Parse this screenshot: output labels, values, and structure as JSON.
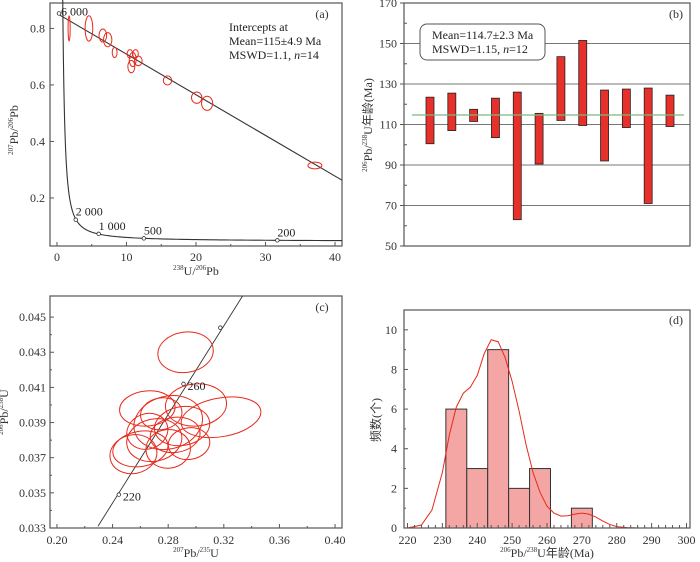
{
  "chart_data": [
    {
      "id": "a",
      "type": "scatter",
      "panel_label": "(a)",
      "title": "",
      "xlabel": {
        "sup1": "238",
        "base1": "U/",
        "sup2": "206",
        "base2": "Pb"
      },
      "ylabel": {
        "sup1": "207",
        "base1": "Pb/",
        "sup2": "206",
        "base2": "Pb"
      },
      "xlim": [
        -1,
        41
      ],
      "ylim": [
        0.03,
        0.89
      ],
      "xticks": [
        0,
        10,
        20,
        30,
        40
      ],
      "yticks": [
        0.2,
        0.4,
        0.6,
        0.8
      ],
      "ytick_labels": [
        "0.2",
        "0.4",
        "0.6",
        "0.8"
      ],
      "annotation": [
        "Intercepts at",
        "Mean=115±4.9 Ma",
        "MSWD=1.1, "
      ],
      "annotation_n": "n",
      "annotation_n_value": "=14",
      "regression_line": {
        "x": [
          0,
          41
        ],
        "y": [
          0.853,
          0.263
        ]
      },
      "concordia_labels": [
        {
          "age": "6 000",
          "x": 0.3,
          "y": 0.853
        },
        {
          "age": "2 000",
          "x": 2.7,
          "y": 0.123
        },
        {
          "age": "1 000",
          "x": 6.0,
          "y": 0.073
        },
        {
          "age": "500",
          "x": 12.5,
          "y": 0.057
        },
        {
          "age": "200",
          "x": 31.7,
          "y": 0.05
        }
      ],
      "ellipses": [
        {
          "x": 1.75,
          "y": 0.8,
          "rx": 0.15,
          "ry": 0.045
        },
        {
          "x": 4.6,
          "y": 0.8,
          "rx": 0.55,
          "ry": 0.045
        },
        {
          "x": 6.6,
          "y": 0.775,
          "rx": 0.55,
          "ry": 0.023
        },
        {
          "x": 7.3,
          "y": 0.76,
          "rx": 0.6,
          "ry": 0.025
        },
        {
          "x": 8.3,
          "y": 0.715,
          "rx": 0.35,
          "ry": 0.018
        },
        {
          "x": 10.5,
          "y": 0.71,
          "rx": 0.4,
          "ry": 0.015
        },
        {
          "x": 10.9,
          "y": 0.69,
          "rx": 0.5,
          "ry": 0.025
        },
        {
          "x": 11.3,
          "y": 0.71,
          "rx": 0.4,
          "ry": 0.015
        },
        {
          "x": 11.7,
          "y": 0.685,
          "rx": 0.55,
          "ry": 0.017
        },
        {
          "x": 10.7,
          "y": 0.665,
          "rx": 0.5,
          "ry": 0.022
        },
        {
          "x": 15.9,
          "y": 0.616,
          "rx": 0.6,
          "ry": 0.016
        },
        {
          "x": 20.1,
          "y": 0.555,
          "rx": 0.75,
          "ry": 0.02
        },
        {
          "x": 21.6,
          "y": 0.535,
          "rx": 0.8,
          "ry": 0.025
        },
        {
          "x": 37.1,
          "y": 0.315,
          "rx": 1.0,
          "ry": 0.012
        }
      ]
    },
    {
      "id": "b",
      "type": "bar",
      "panel_label": "(b)",
      "ylabel": {
        "sup1": "206",
        "base1": "Pb/",
        "sup2": "238",
        "base2": "U年龄(Ma)"
      },
      "ylim": [
        50,
        170
      ],
      "yticks": [
        50,
        70,
        90,
        110,
        130,
        150,
        170
      ],
      "annotation": [
        "Mean=114.7±2.3 Ma",
        "MSWD=1.15, "
      ],
      "annotation_n": "n",
      "annotation_n_value": "=12",
      "mean": 114.7,
      "bars": [
        {
          "low": 100.5,
          "high": 123.5
        },
        {
          "low": 107,
          "high": 125.5
        },
        {
          "low": 111.5,
          "high": 117.5
        },
        {
          "low": 103.5,
          "high": 123
        },
        {
          "low": 63,
          "high": 126
        },
        {
          "low": 90.5,
          "high": 115.5
        },
        {
          "low": 112,
          "high": 143.5
        },
        {
          "low": 109.5,
          "high": 151.5
        },
        {
          "low": 92,
          "high": 127
        },
        {
          "low": 108.5,
          "high": 127.5
        },
        {
          "low": 71,
          "high": 128
        },
        {
          "low": 109,
          "high": 124.5
        }
      ]
    },
    {
      "id": "c",
      "type": "scatter",
      "panel_label": "(c)",
      "xlabel": {
        "sup1": "207",
        "base1": "Pb/",
        "sup2": "235",
        "base2": "U"
      },
      "ylabel": {
        "sup1": "206",
        "base1": "Pb/",
        "sup2": "238",
        "base2": "U"
      },
      "xlim": [
        0.195,
        0.405
      ],
      "ylim": [
        0.033,
        0.0462
      ],
      "xticks": [
        0.2,
        0.24,
        0.28,
        0.32,
        0.36,
        0.4
      ],
      "xtick_labels": [
        "0.20",
        "0.24",
        "0.28",
        "0.32",
        "0.36",
        "0.40"
      ],
      "yticks": [
        0.033,
        0.035,
        0.037,
        0.039,
        0.041,
        0.043,
        0.045
      ],
      "ytick_labels": [
        "0.033",
        "0.035",
        "0.037",
        "0.039",
        "0.041",
        "0.043",
        "0.045"
      ],
      "concordia_line": {
        "x": [
          0.2295,
          0.3335
        ],
        "y": [
          0.0331,
          0.0462
        ]
      },
      "concordia_labels": [
        {
          "age": "220",
          "x": 0.2445,
          "y": 0.0349
        },
        {
          "age": "260",
          "x": 0.291,
          "y": 0.0412
        },
        {
          "age": "",
          "x": 0.3175,
          "y": 0.0444
        }
      ],
      "ellipses": [
        {
          "x": 0.2925,
          "y": 0.043,
          "rx": 0.02,
          "ry": 0.00115,
          "rot": -8
        },
        {
          "x": 0.265,
          "y": 0.0398,
          "rx": 0.02,
          "ry": 0.001,
          "rot": -5
        },
        {
          "x": 0.318,
          "y": 0.0393,
          "rx": 0.029,
          "ry": 0.0011,
          "rot": -10
        },
        {
          "x": 0.3,
          "y": 0.04,
          "rx": 0.022,
          "ry": 0.0012,
          "rot": -5
        },
        {
          "x": 0.28,
          "y": 0.039,
          "rx": 0.025,
          "ry": 0.0015,
          "rot": -15
        },
        {
          "x": 0.27,
          "y": 0.038,
          "rx": 0.02,
          "ry": 0.0012,
          "rot": -12
        },
        {
          "x": 0.26,
          "y": 0.0375,
          "rx": 0.02,
          "ry": 0.001,
          "rot": -10
        },
        {
          "x": 0.255,
          "y": 0.0372,
          "rx": 0.017,
          "ry": 0.0011,
          "rot": -12
        },
        {
          "x": 0.28,
          "y": 0.0375,
          "rx": 0.016,
          "ry": 0.0011,
          "rot": -5
        },
        {
          "x": 0.29,
          "y": 0.0388,
          "rx": 0.02,
          "ry": 0.0011,
          "rot": -10
        },
        {
          "x": 0.275,
          "y": 0.0395,
          "rx": 0.015,
          "ry": 0.0009,
          "rot": -10
        },
        {
          "x": 0.285,
          "y": 0.0383,
          "rx": 0.018,
          "ry": 0.001,
          "rot": -8
        },
        {
          "x": 0.265,
          "y": 0.0385,
          "rx": 0.015,
          "ry": 0.001,
          "rot": -20
        },
        {
          "x": 0.295,
          "y": 0.0378,
          "rx": 0.015,
          "ry": 0.0009,
          "rot": -8
        }
      ]
    },
    {
      "id": "d",
      "type": "bar",
      "panel_label": "(d)",
      "xlabel": {
        "sup1": "206",
        "base1": "Pb/",
        "sup2": "238",
        "base2": "U年龄(Ma)"
      },
      "ylabel_text": "频数(个)",
      "xlim": [
        219,
        301
      ],
      "ylim": [
        0,
        11
      ],
      "xticks": [
        220,
        230,
        240,
        250,
        260,
        270,
        280,
        290,
        300
      ],
      "yticks": [
        0,
        2,
        4,
        6,
        8,
        10
      ],
      "bins": [
        {
          "from": 231,
          "to": 237,
          "count": 6
        },
        {
          "from": 237,
          "to": 243,
          "count": 3
        },
        {
          "from": 243,
          "to": 249,
          "count": 9
        },
        {
          "from": 249,
          "to": 255,
          "count": 2
        },
        {
          "from": 255,
          "to": 261,
          "count": 3
        },
        {
          "from": 261,
          "to": 267,
          "count": 0
        },
        {
          "from": 267,
          "to": 273,
          "count": 1
        }
      ],
      "kde_curve": {
        "x": [
          220,
          224,
          227,
          230,
          232,
          234,
          236,
          238,
          240,
          242,
          244,
          246,
          248,
          250,
          252,
          254,
          256,
          258,
          260,
          262,
          264,
          266,
          268,
          270,
          272,
          274,
          276,
          278,
          280,
          283,
          286,
          290
        ],
        "y": [
          0.0,
          0.15,
          0.9,
          2.8,
          4.7,
          6.1,
          6.8,
          7.1,
          7.7,
          8.8,
          9.5,
          9.4,
          8.6,
          7.4,
          5.9,
          4.2,
          2.8,
          1.8,
          1.1,
          0.75,
          0.6,
          0.62,
          0.7,
          0.75,
          0.7,
          0.55,
          0.35,
          0.18,
          0.07,
          0.02,
          0.0,
          0.0
        ]
      }
    }
  ],
  "colors": {
    "ellipse": "#e8291c",
    "bar_fill": "#e8302a",
    "mean_line": "#7fb77e",
    "hist_fill": "#f4a6a4",
    "kde": "#e8291c",
    "frame": "#555555",
    "gridline": "#777777"
  }
}
